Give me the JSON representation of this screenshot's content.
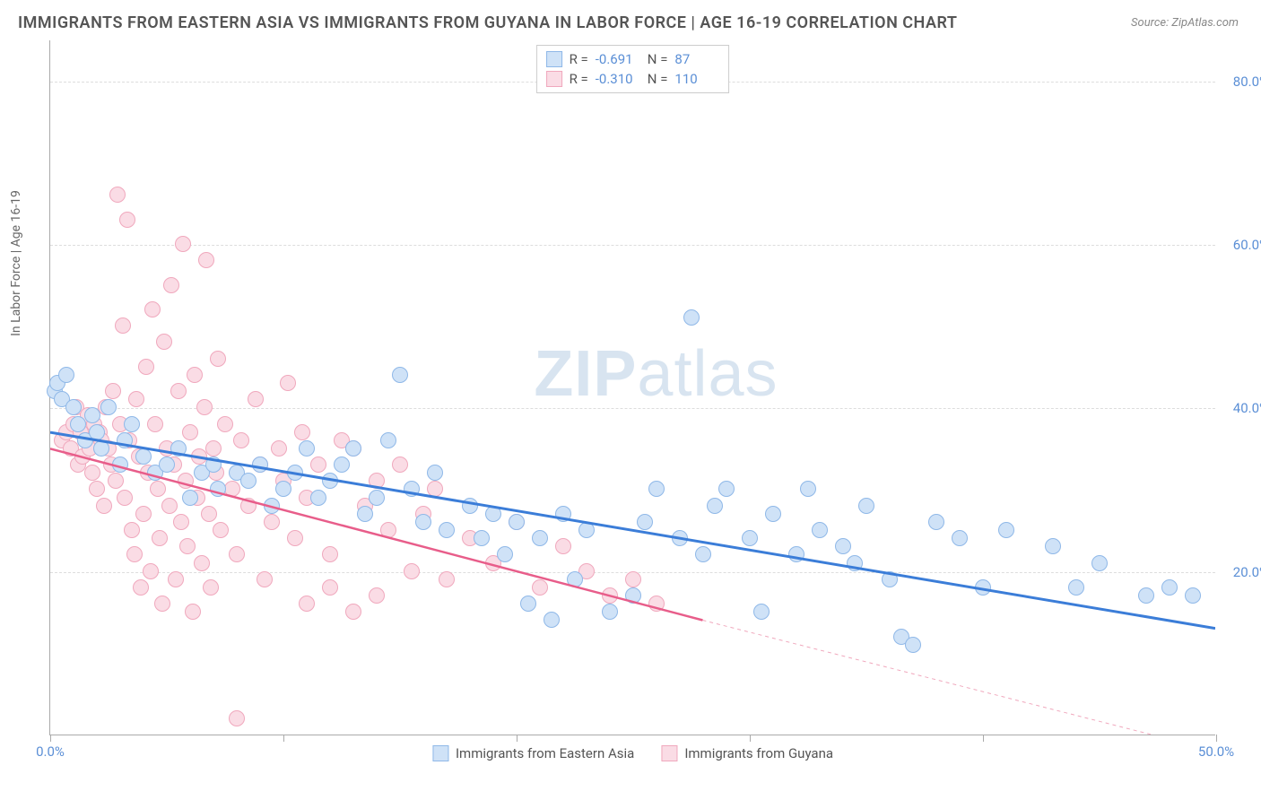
{
  "title": "IMMIGRANTS FROM EASTERN ASIA VS IMMIGRANTS FROM GUYANA IN LABOR FORCE | AGE 16-19 CORRELATION CHART",
  "source": "Source: ZipAtlas.com",
  "watermark_bold": "ZIP",
  "watermark_light": "atlas",
  "y_axis_title": "In Labor Force | Age 16-19",
  "chart": {
    "type": "scatter",
    "background_color": "#ffffff",
    "grid_color": "#dddddd",
    "axis_color": "#aaaaaa",
    "xlim": [
      0,
      50
    ],
    "ylim": [
      0,
      85
    ],
    "x_ticks": [
      0,
      10,
      20,
      30,
      40,
      50
    ],
    "x_tick_labels": [
      "0.0%",
      "",
      "",
      "",
      "",
      "50.0%"
    ],
    "y_ticks": [
      20,
      40,
      60,
      80
    ],
    "y_tick_labels": [
      "20.0%",
      "40.0%",
      "60.0%",
      "80.0%"
    ],
    "tick_label_color": "#5b8fd6",
    "tick_label_fontsize": 15,
    "point_radius": 9,
    "point_stroke_width": 1.5
  },
  "series": [
    {
      "name": "Immigrants from Eastern Asia",
      "fill": "#cfe2f7",
      "stroke": "#8fb8e8",
      "trend_color": "#3b7dd8",
      "trend_width": 3,
      "R": "-0.691",
      "N": "87",
      "trend": {
        "x1": 0,
        "y1": 37,
        "x2": 50,
        "y2": 13
      },
      "points": [
        [
          0.2,
          42
        ],
        [
          0.3,
          43
        ],
        [
          0.5,
          41
        ],
        [
          0.7,
          44
        ],
        [
          1.0,
          40
        ],
        [
          1.2,
          38
        ],
        [
          1.5,
          36
        ],
        [
          1.8,
          39
        ],
        [
          2.0,
          37
        ],
        [
          2.2,
          35
        ],
        [
          2.5,
          40
        ],
        [
          3.0,
          33
        ],
        [
          3.2,
          36
        ],
        [
          3.5,
          38
        ],
        [
          4.0,
          34
        ],
        [
          4.5,
          32
        ],
        [
          5.0,
          33
        ],
        [
          5.5,
          35
        ],
        [
          6.0,
          29
        ],
        [
          6.5,
          32
        ],
        [
          7.0,
          33
        ],
        [
          7.2,
          30
        ],
        [
          8.0,
          32
        ],
        [
          8.5,
          31
        ],
        [
          9.0,
          33
        ],
        [
          9.5,
          28
        ],
        [
          10.0,
          30
        ],
        [
          10.5,
          32
        ],
        [
          11.0,
          35
        ],
        [
          11.5,
          29
        ],
        [
          12.0,
          31
        ],
        [
          12.5,
          33
        ],
        [
          13.0,
          35
        ],
        [
          13.5,
          27
        ],
        [
          14.0,
          29
        ],
        [
          14.5,
          36
        ],
        [
          15.0,
          44
        ],
        [
          15.5,
          30
        ],
        [
          16.0,
          26
        ],
        [
          16.5,
          32
        ],
        [
          17.0,
          25
        ],
        [
          18.0,
          28
        ],
        [
          18.5,
          24
        ],
        [
          19.0,
          27
        ],
        [
          19.5,
          22
        ],
        [
          20.0,
          26
        ],
        [
          20.5,
          16
        ],
        [
          21.0,
          24
        ],
        [
          21.5,
          14
        ],
        [
          22.0,
          27
        ],
        [
          22.5,
          19
        ],
        [
          23.0,
          25
        ],
        [
          24.0,
          15
        ],
        [
          25.0,
          17
        ],
        [
          25.5,
          26
        ],
        [
          26.0,
          30
        ],
        [
          27.0,
          24
        ],
        [
          27.5,
          51
        ],
        [
          28.0,
          22
        ],
        [
          28.5,
          28
        ],
        [
          29.0,
          30
        ],
        [
          30.0,
          24
        ],
        [
          30.5,
          15
        ],
        [
          31.0,
          27
        ],
        [
          32.0,
          22
        ],
        [
          32.5,
          30
        ],
        [
          33.0,
          25
        ],
        [
          34.0,
          23
        ],
        [
          34.5,
          21
        ],
        [
          35.0,
          28
        ],
        [
          36.0,
          19
        ],
        [
          36.5,
          12
        ],
        [
          37.0,
          11
        ],
        [
          38.0,
          26
        ],
        [
          39.0,
          24
        ],
        [
          40.0,
          18
        ],
        [
          41.0,
          25
        ],
        [
          43.0,
          23
        ],
        [
          44.0,
          18
        ],
        [
          45.0,
          21
        ],
        [
          47.0,
          17
        ],
        [
          48.0,
          18
        ],
        [
          49.0,
          17
        ]
      ]
    },
    {
      "name": "Immigrants from Guyana",
      "fill": "#fadce5",
      "stroke": "#f0a8bd",
      "trend_color": "#e85d8a",
      "trend_width": 2.5,
      "R": "-0.310",
      "N": "110",
      "trend": {
        "x1": 0,
        "y1": 35,
        "x2": 28,
        "y2": 14
      },
      "trend_dashed_to": {
        "x": 50,
        "y": -2
      },
      "points": [
        [
          0.5,
          36
        ],
        [
          0.7,
          37
        ],
        [
          0.9,
          35
        ],
        [
          1.0,
          38
        ],
        [
          1.1,
          40
        ],
        [
          1.2,
          33
        ],
        [
          1.3,
          37
        ],
        [
          1.4,
          34
        ],
        [
          1.5,
          36
        ],
        [
          1.6,
          39
        ],
        [
          1.7,
          35
        ],
        [
          1.8,
          32
        ],
        [
          1.9,
          38
        ],
        [
          2.0,
          30
        ],
        [
          2.1,
          37
        ],
        [
          2.2,
          36
        ],
        [
          2.3,
          28
        ],
        [
          2.4,
          40
        ],
        [
          2.5,
          35
        ],
        [
          2.6,
          33
        ],
        [
          2.7,
          42
        ],
        [
          2.8,
          31
        ],
        [
          2.9,
          66
        ],
        [
          3.0,
          38
        ],
        [
          3.1,
          50
        ],
        [
          3.2,
          29
        ],
        [
          3.3,
          63
        ],
        [
          3.4,
          36
        ],
        [
          3.5,
          25
        ],
        [
          3.6,
          22
        ],
        [
          3.7,
          41
        ],
        [
          3.8,
          34
        ],
        [
          3.9,
          18
        ],
        [
          4.0,
          27
        ],
        [
          4.1,
          45
        ],
        [
          4.2,
          32
        ],
        [
          4.3,
          20
        ],
        [
          4.4,
          52
        ],
        [
          4.5,
          38
        ],
        [
          4.6,
          30
        ],
        [
          4.7,
          24
        ],
        [
          4.8,
          16
        ],
        [
          4.9,
          48
        ],
        [
          5.0,
          35
        ],
        [
          5.1,
          28
        ],
        [
          5.2,
          55
        ],
        [
          5.3,
          33
        ],
        [
          5.4,
          19
        ],
        [
          5.5,
          42
        ],
        [
          5.6,
          26
        ],
        [
          5.7,
          60
        ],
        [
          5.8,
          31
        ],
        [
          5.9,
          23
        ],
        [
          6.0,
          37
        ],
        [
          6.1,
          15
        ],
        [
          6.2,
          44
        ],
        [
          6.3,
          29
        ],
        [
          6.4,
          34
        ],
        [
          6.5,
          21
        ],
        [
          6.6,
          40
        ],
        [
          6.7,
          58
        ],
        [
          6.8,
          27
        ],
        [
          6.9,
          18
        ],
        [
          7.0,
          35
        ],
        [
          7.1,
          32
        ],
        [
          7.2,
          46
        ],
        [
          7.3,
          25
        ],
        [
          7.5,
          38
        ],
        [
          7.8,
          30
        ],
        [
          8.0,
          22
        ],
        [
          8.2,
          36
        ],
        [
          8.5,
          28
        ],
        [
          8.8,
          41
        ],
        [
          9.0,
          33
        ],
        [
          9.2,
          19
        ],
        [
          9.5,
          26
        ],
        [
          9.8,
          35
        ],
        [
          10.0,
          31
        ],
        [
          10.2,
          43
        ],
        [
          10.5,
          24
        ],
        [
          10.8,
          37
        ],
        [
          11.0,
          29
        ],
        [
          11.5,
          33
        ],
        [
          12.0,
          22
        ],
        [
          12.5,
          36
        ],
        [
          13.0,
          35
        ],
        [
          13.5,
          28
        ],
        [
          14.0,
          31
        ],
        [
          14.5,
          25
        ],
        [
          15.0,
          33
        ],
        [
          15.5,
          20
        ],
        [
          16.0,
          27
        ],
        [
          16.5,
          30
        ],
        [
          17.0,
          19
        ],
        [
          18.0,
          24
        ],
        [
          19.0,
          21
        ],
        [
          20.0,
          26
        ],
        [
          21.0,
          18
        ],
        [
          22.0,
          23
        ],
        [
          23.0,
          20
        ],
        [
          24.0,
          17
        ],
        [
          25.0,
          19
        ],
        [
          26.0,
          16
        ],
        [
          8.0,
          2
        ],
        [
          11.0,
          16
        ],
        [
          12.0,
          18
        ],
        [
          13.0,
          15
        ],
        [
          14.0,
          17
        ]
      ]
    }
  ],
  "stats_box": {
    "R_label": "R =",
    "N_label": "N ="
  },
  "bottom_legend_label_1": "Immigrants from Eastern Asia",
  "bottom_legend_label_2": "Immigrants from Guyana"
}
